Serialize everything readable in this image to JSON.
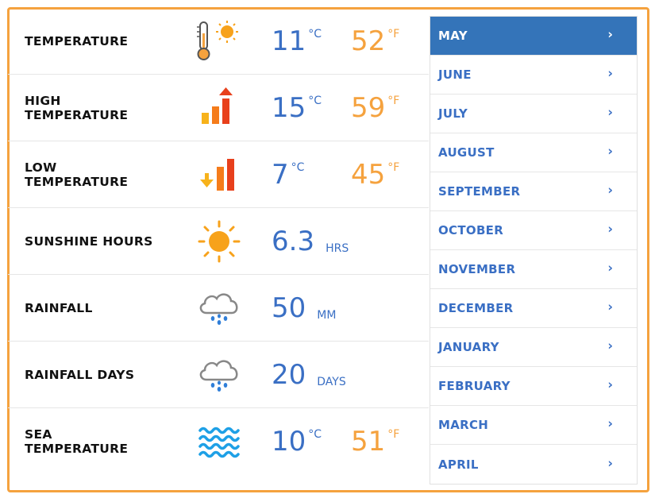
{
  "rows": [
    {
      "label": "TEMPERATURE",
      "icon": "thermometer-sun-icon",
      "value_c": "11",
      "unit_c": "°C",
      "value_f": "52",
      "unit_f": "°F"
    },
    {
      "label": "HIGH TEMPERATURE",
      "icon": "high-temperature-bars-icon",
      "value_c": "15",
      "unit_c": "°C",
      "value_f": "59",
      "unit_f": "°F"
    },
    {
      "label": "LOW TEMPERATURE",
      "icon": "low-temperature-bars-icon",
      "value_c": "7",
      "unit_c": "°C",
      "value_f": "45",
      "unit_f": "°F"
    },
    {
      "label": "SUNSHINE HOURS",
      "icon": "sun-icon",
      "value": "6.3",
      "unit": "HRS"
    },
    {
      "label": "RAINFALL",
      "icon": "rain-cloud-icon",
      "value": "50",
      "unit": "MM"
    },
    {
      "label": "RAINFALL DAYS",
      "icon": "rain-cloud-icon",
      "value": "20",
      "unit": "DAYS"
    },
    {
      "label": "SEA TEMPERATURE",
      "icon": "waves-icon",
      "value_c": "10",
      "unit_c": "°C",
      "value_f": "51",
      "unit_f": "°F"
    }
  ],
  "months": [
    {
      "label": "MAY",
      "active": true
    },
    {
      "label": "JUNE"
    },
    {
      "label": "JULY"
    },
    {
      "label": "AUGUST"
    },
    {
      "label": "SEPTEMBER"
    },
    {
      "label": "OCTOBER"
    },
    {
      "label": "NOVEMBER"
    },
    {
      "label": "DECEMBER"
    },
    {
      "label": "JANUARY"
    },
    {
      "label": "FEBRUARY"
    },
    {
      "label": "MARCH"
    },
    {
      "label": "APRIL"
    }
  ],
  "chevron": "›",
  "colors": {
    "accent_blue": "#3a6fc4",
    "accent_orange": "#f5a23e",
    "active_bg": "#3474b9"
  }
}
